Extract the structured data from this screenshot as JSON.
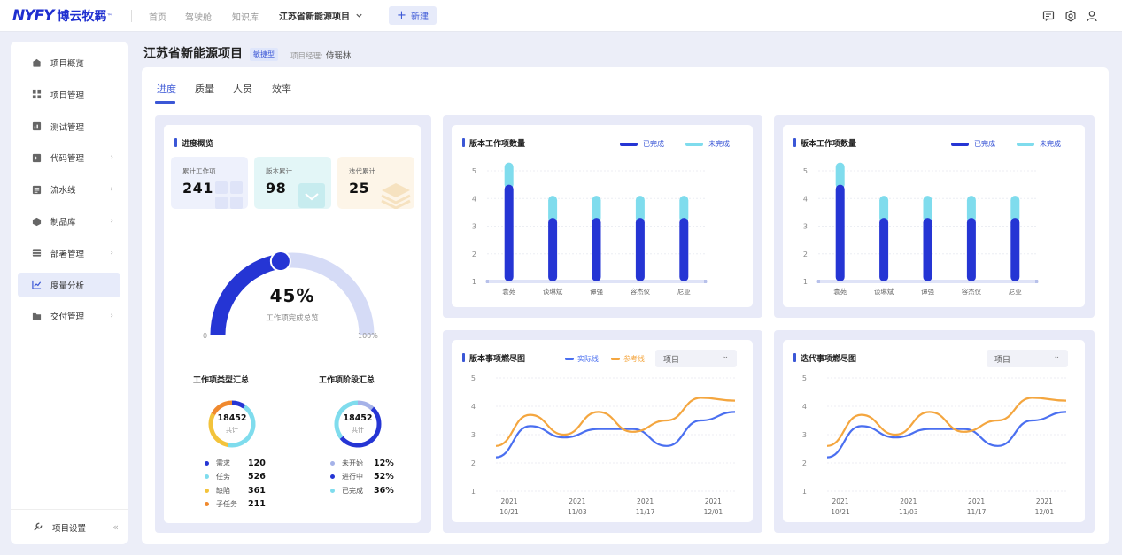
{
  "topbar": {
    "logo_mark": "NYFY",
    "logo_text": "博云牧羁",
    "nav": [
      "首页",
      "驾驶舱",
      "知识库"
    ],
    "project": "江苏省新能源项目",
    "new_label": "新建"
  },
  "sidebar": {
    "items": [
      {
        "label": "项目概览",
        "icon": "home-icon",
        "chev": false
      },
      {
        "label": "项目管理",
        "icon": "grid-icon",
        "chev": false
      },
      {
        "label": "测试管理",
        "icon": "test-icon",
        "chev": false
      },
      {
        "label": "代码管理",
        "icon": "code-icon",
        "chev": true
      },
      {
        "label": "流水线",
        "icon": "pipeline-icon",
        "chev": true
      },
      {
        "label": "制品库",
        "icon": "box-icon",
        "chev": true
      },
      {
        "label": "部署管理",
        "icon": "deploy-icon",
        "chev": true
      },
      {
        "label": "度量分析",
        "icon": "chart-icon",
        "chev": false,
        "active": true
      },
      {
        "label": "交付管理",
        "icon": "delivery-icon",
        "chev": true
      }
    ],
    "footer": "项目设置"
  },
  "page": {
    "title": "江苏省新能源项目",
    "badge": "敏捷型",
    "manager_label": "项目经理:",
    "manager": "侍瑶林"
  },
  "tabs": [
    "进度",
    "质量",
    "人员",
    "效率"
  ],
  "progress": {
    "title": "进度概览",
    "stats": [
      {
        "label": "累计工作项",
        "value": "241"
      },
      {
        "label": "版本累计",
        "value": "98"
      },
      {
        "label": "迭代累计",
        "value": "25"
      }
    ],
    "gauge": {
      "percent": "45%",
      "value": 0.45,
      "caption": "工作项完成总览",
      "min": "0",
      "max": "100%"
    },
    "types": {
      "title": "工作项类型汇总",
      "total": "18452",
      "total_label": "共计",
      "items": [
        {
          "label": "需求",
          "value": "120",
          "color": "#2535d4"
        },
        {
          "label": "任务",
          "value": "526",
          "color": "#7fdced"
        },
        {
          "label": "缺陷",
          "value": "361",
          "color": "#f3c33b"
        },
        {
          "label": "子任务",
          "value": "211",
          "color": "#f0892e"
        }
      ]
    },
    "stages": {
      "title": "工作项阶段汇总",
      "total": "18452",
      "total_label": "共计",
      "items": [
        {
          "label": "未开始",
          "value": "12%",
          "color": "#a5b2e8"
        },
        {
          "label": "进行中",
          "value": "52%",
          "color": "#2535d4"
        },
        {
          "label": "已完成",
          "value": "36%",
          "color": "#7fdced"
        }
      ]
    }
  },
  "bar_charts": [
    {
      "title": "版本工作项数量",
      "legend": [
        "已完成",
        "未完成"
      ]
    },
    {
      "title": "版本工作项数量",
      "legend": [
        "已完成",
        "未完成"
      ]
    }
  ],
  "line_charts": [
    {
      "title": "版本事项燃尽图",
      "legend": [
        "实际线",
        "参考线"
      ],
      "select": "项目"
    },
    {
      "title": "迭代事项燃尽图",
      "legend": [],
      "select": "项目"
    }
  ],
  "chart_data": [
    {
      "type": "bar",
      "title": "版本工作项数量",
      "categories": [
        "寰苑",
        "谈琳斌",
        "谭强",
        "容杰仪",
        "尼亚"
      ],
      "series": [
        {
          "name": "已完成",
          "values": [
            3.5,
            2.3,
            2.3,
            2.3,
            2.3
          ]
        },
        {
          "name": "未完成",
          "values": [
            0.8,
            0.8,
            0.8,
            0.8,
            0.8
          ]
        }
      ],
      "ylim": [
        1,
        5
      ],
      "yticks": [
        "1",
        "2",
        "3",
        "4",
        "5"
      ],
      "colors": [
        "#2535d4",
        "#7fdced"
      ]
    },
    {
      "type": "bar",
      "title": "版本工作项数量",
      "categories": [
        "寰苑",
        "谈琳斌",
        "谭强",
        "容杰仪",
        "尼亚"
      ],
      "series": [
        {
          "name": "已完成",
          "values": [
            3.5,
            2.3,
            2.3,
            2.3,
            2.3
          ]
        },
        {
          "name": "未完成",
          "values": [
            0.8,
            0.8,
            0.8,
            0.8,
            0.8
          ]
        }
      ],
      "ylim": [
        1,
        5
      ],
      "yticks": [
        "1",
        "2",
        "3",
        "4",
        "5"
      ],
      "colors": [
        "#2535d4",
        "#7fdced"
      ]
    },
    {
      "type": "line",
      "title": "版本事项燃尽图",
      "x_labels": [
        [
          "2021",
          "10/21"
        ],
        [
          "2021",
          "11/03"
        ],
        [
          "2021",
          "11/17"
        ],
        [
          "2021",
          "12/01"
        ]
      ],
      "series": [
        {
          "name": "实际线",
          "values": [
            2.2,
            3.3,
            2.9,
            3.2,
            3.2,
            2.6,
            3.5,
            3.8
          ]
        },
        {
          "name": "参考线",
          "values": [
            2.6,
            3.7,
            3.0,
            3.8,
            3.1,
            3.5,
            4.3,
            4.2
          ]
        }
      ],
      "ylim": [
        1,
        5
      ],
      "yticks": [
        "1",
        "2",
        "3",
        "4",
        "5"
      ],
      "colors": [
        "#4a6ff0",
        "#f4a63f"
      ]
    },
    {
      "type": "line",
      "title": "迭代事项燃尽图",
      "x_labels": [
        [
          "2021",
          "10/21"
        ],
        [
          "2021",
          "11/03"
        ],
        [
          "2021",
          "11/17"
        ],
        [
          "2021",
          "12/01"
        ]
      ],
      "series": [
        {
          "values": [
            2.2,
            3.3,
            2.9,
            3.2,
            3.2,
            2.6,
            3.5,
            3.8
          ]
        },
        {
          "values": [
            2.6,
            3.7,
            3.0,
            3.8,
            3.1,
            3.5,
            4.3,
            4.2
          ]
        }
      ],
      "ylim": [
        1,
        5
      ],
      "yticks": [
        "1",
        "2",
        "3",
        "4",
        "5"
      ],
      "colors": [
        "#4a6ff0",
        "#f4a63f"
      ]
    }
  ]
}
